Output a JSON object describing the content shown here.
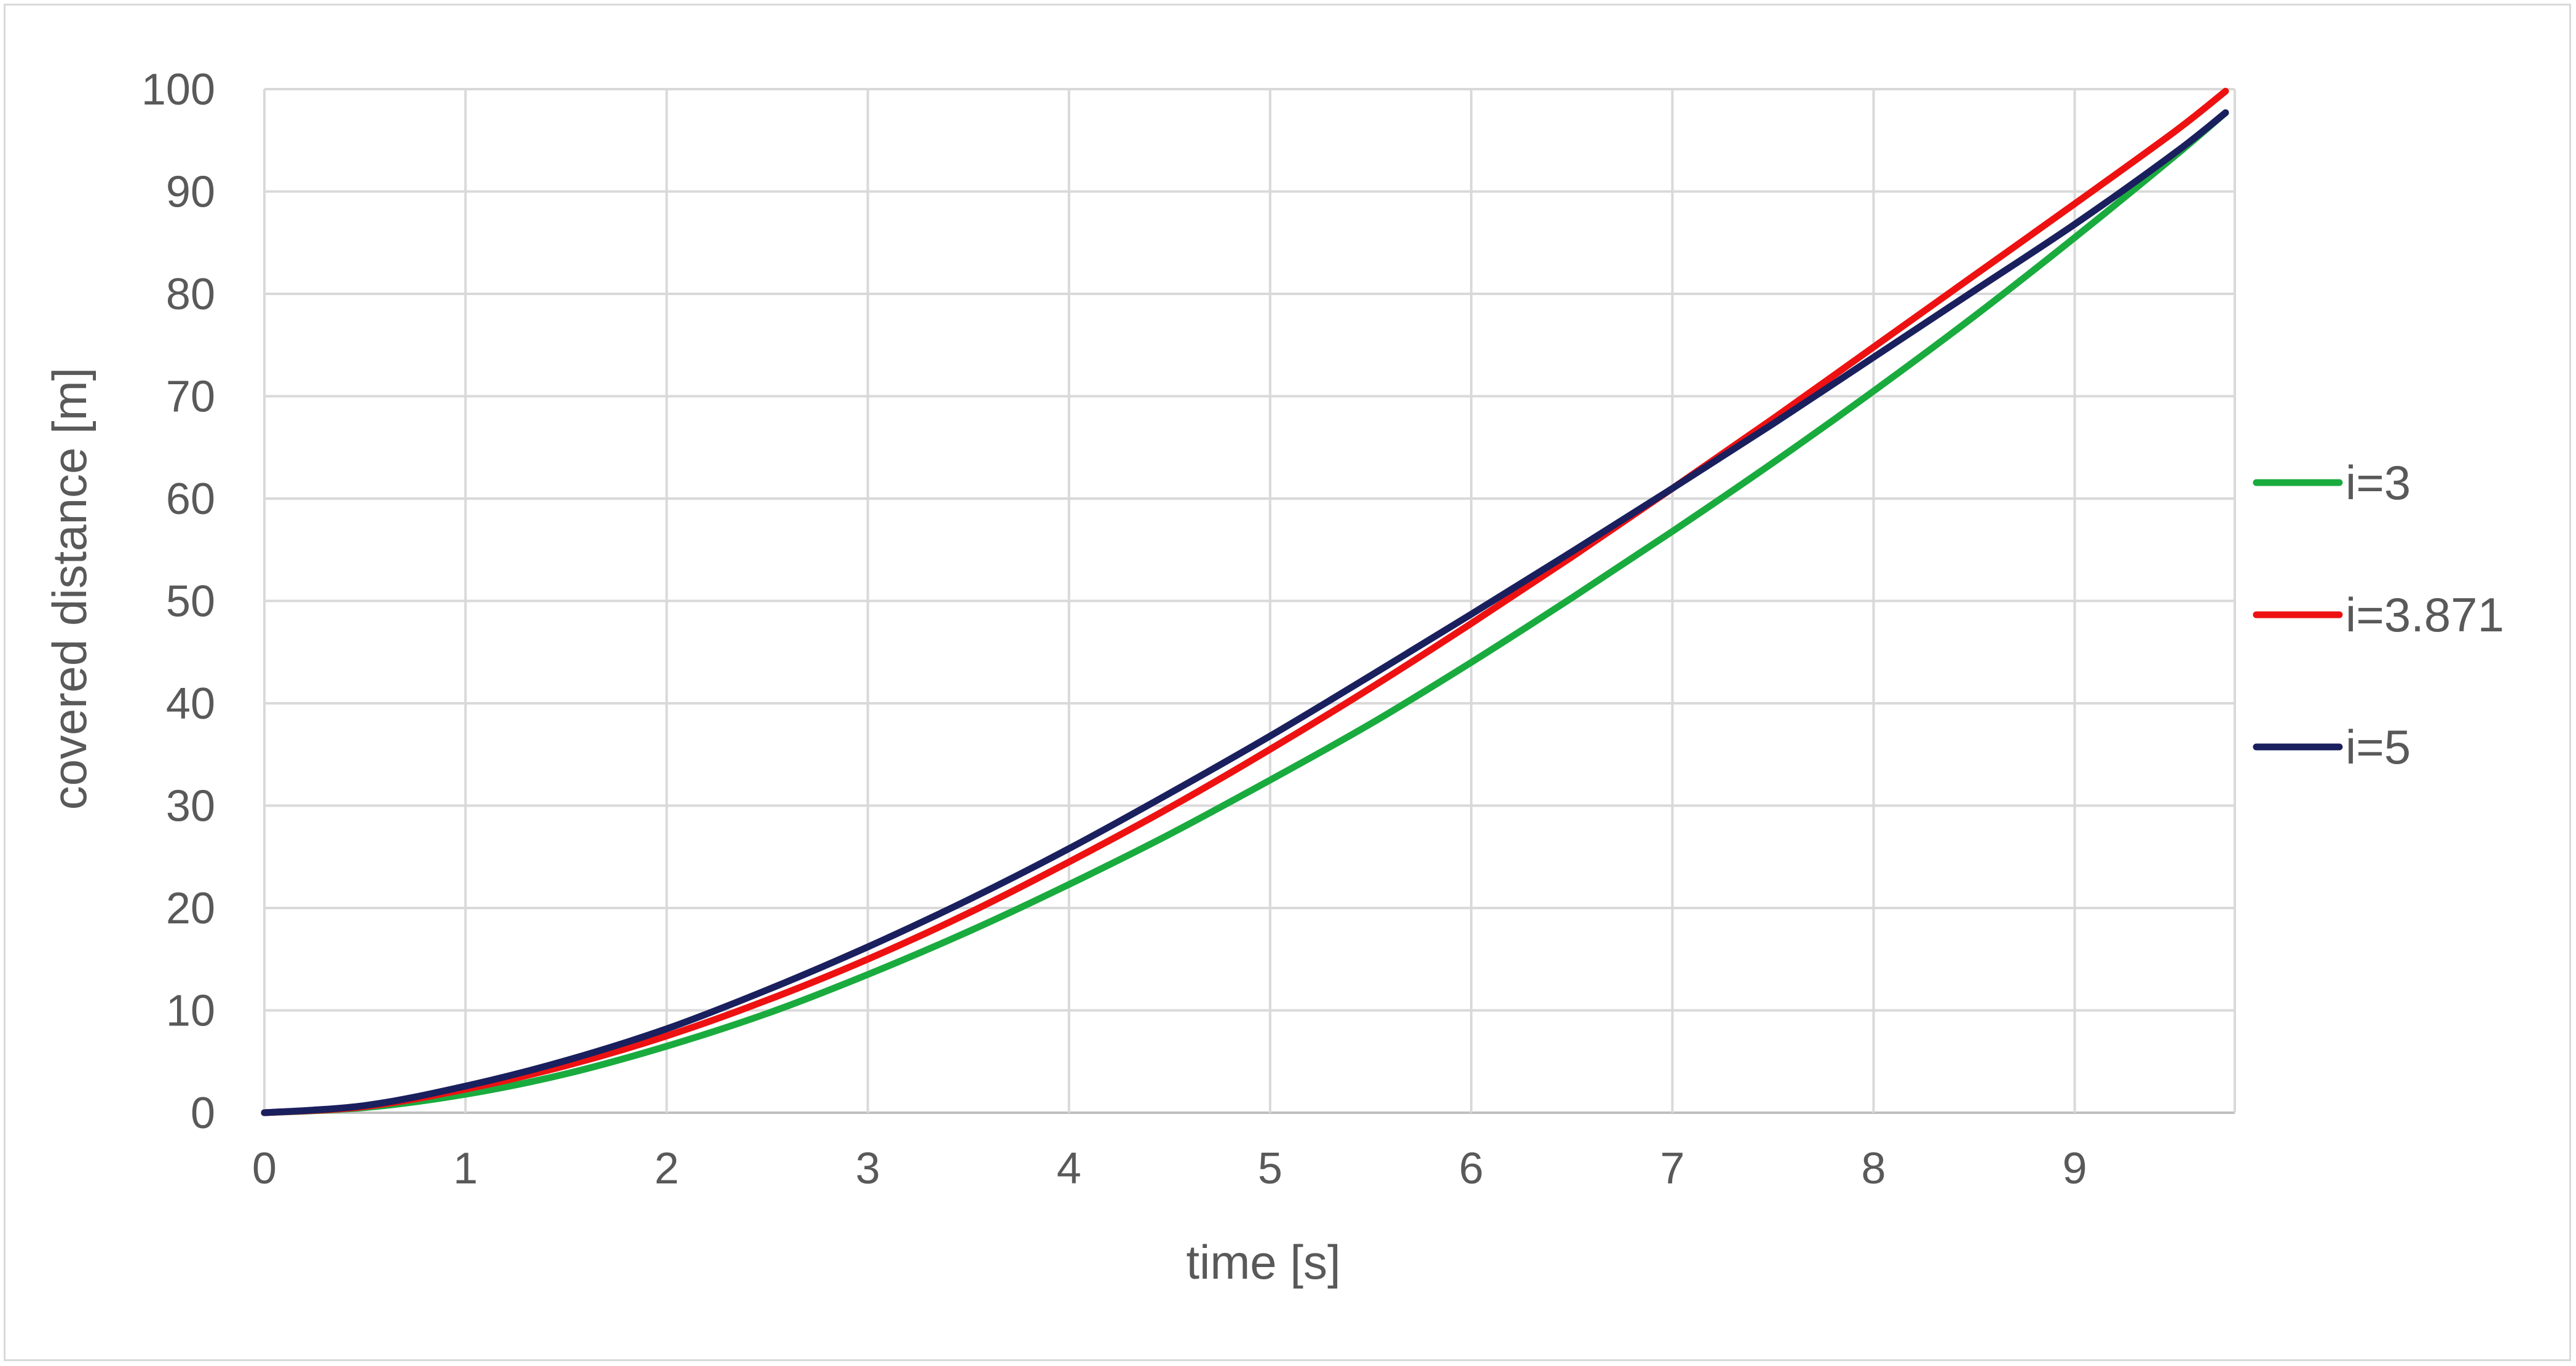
{
  "chart_data": {
    "type": "line",
    "xlabel": "time [s]",
    "ylabel": "covered distance [m]",
    "xlim": [
      0,
      9.75
    ],
    "ylim": [
      0,
      100
    ],
    "x_ticks": [
      "0",
      "1",
      "2",
      "3",
      "4",
      "5",
      "6",
      "7",
      "8",
      "9"
    ],
    "y_ticks": [
      "0",
      "10",
      "20",
      "30",
      "40",
      "50",
      "60",
      "70",
      "80",
      "90",
      "100"
    ],
    "grid": true,
    "legend_position": "right",
    "series": [
      {
        "name": "i=3",
        "color": "#1aab3e",
        "x": [
          0,
          0.5,
          1,
          1.5,
          2,
          2.5,
          3,
          3.5,
          4,
          4.5,
          5,
          5.5,
          6,
          6.5,
          7,
          7.5,
          8,
          8.5,
          9,
          9.5,
          9.75
        ],
        "y": [
          0,
          0.5,
          1.8,
          3.8,
          6.5,
          9.7,
          13.5,
          17.7,
          22.3,
          27.2,
          32.5,
          38.0,
          44.0,
          50.3,
          56.8,
          63.5,
          70.5,
          77.8,
          85.5,
          93.5,
          97.7
        ]
      },
      {
        "name": "i=3.871",
        "color": "#ee1111",
        "x": [
          0,
          0.5,
          1,
          1.5,
          2,
          2.5,
          3,
          3.5,
          4,
          4.5,
          5,
          5.5,
          6,
          6.5,
          7,
          7.5,
          8,
          8.5,
          9,
          9.5,
          9.75
        ],
        "y": [
          0,
          0.6,
          2.3,
          4.6,
          7.5,
          11.0,
          15.0,
          19.5,
          24.5,
          29.8,
          35.5,
          41.5,
          47.8,
          54.3,
          61.0,
          67.8,
          74.8,
          81.8,
          88.8,
          95.9,
          99.8
        ]
      },
      {
        "name": "i=5",
        "color": "#1a1f5e",
        "x": [
          0,
          0.5,
          1,
          1.5,
          2,
          2.5,
          3,
          3.5,
          4,
          4.5,
          5,
          5.5,
          6,
          6.5,
          7,
          7.5,
          8,
          8.5,
          9,
          9.5,
          9.75
        ],
        "y": [
          0,
          0.7,
          2.6,
          5.1,
          8.2,
          12.0,
          16.2,
          20.8,
          25.8,
          31.2,
          36.8,
          42.7,
          48.7,
          54.8,
          61.0,
          67.3,
          73.8,
          80.3,
          86.8,
          93.8,
          97.7
        ]
      }
    ]
  }
}
